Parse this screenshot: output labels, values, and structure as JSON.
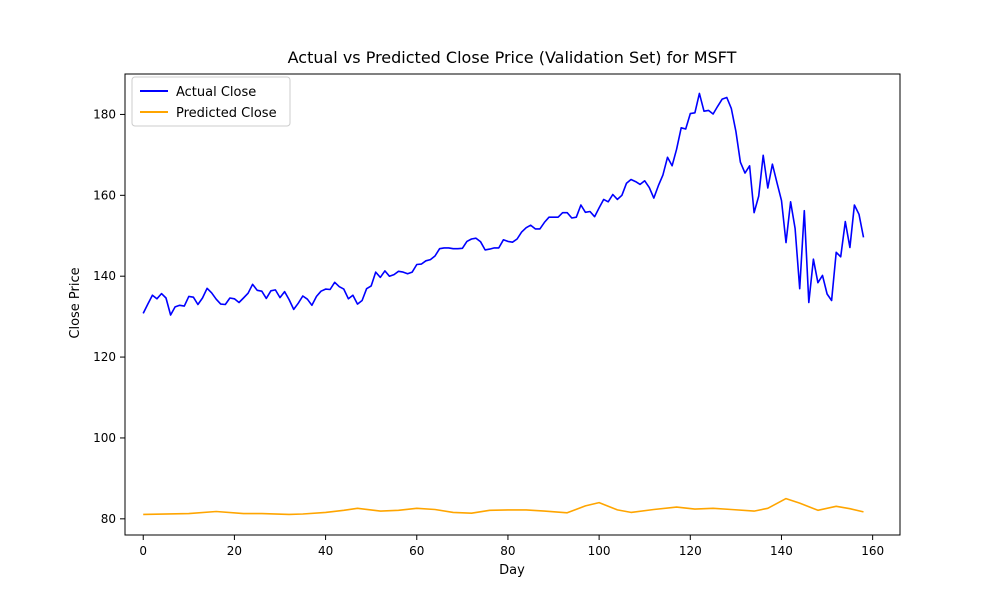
{
  "chart_data": {
    "type": "line",
    "title": "Actual vs Predicted Close Price (Validation Set) for MSFT",
    "xlabel": "Day",
    "ylabel": "Close Price",
    "xlim": [
      -4,
      166
    ],
    "ylim": [
      76,
      190
    ],
    "xticks": [
      0,
      20,
      40,
      60,
      80,
      100,
      120,
      140,
      160
    ],
    "yticks": [
      80,
      100,
      120,
      140,
      160,
      180
    ],
    "grid": false,
    "legend_position": "upper left",
    "series": [
      {
        "name": "Actual Close",
        "color": "#0000ff",
        "x": [
          0,
          1,
          2,
          3,
          4,
          5,
          6,
          7,
          8,
          9,
          10,
          11,
          12,
          13,
          14,
          15,
          16,
          17,
          18,
          19,
          20,
          21,
          22,
          23,
          24,
          25,
          26,
          27,
          28,
          29,
          30,
          31,
          32,
          33,
          34,
          35,
          36,
          37,
          38,
          39,
          40,
          41,
          42,
          43,
          44,
          45,
          46,
          47,
          48,
          49,
          50,
          51,
          52,
          53,
          54,
          55,
          56,
          57,
          58,
          59,
          60,
          61,
          62,
          63,
          64,
          65,
          66,
          67,
          68,
          69,
          70,
          71,
          72,
          73,
          74,
          75,
          76,
          77,
          78,
          79,
          80,
          81,
          82,
          83,
          84,
          85,
          86,
          87,
          88,
          89,
          90,
          91,
          92,
          93,
          94,
          95,
          96,
          97,
          98,
          99,
          100,
          101,
          102,
          103,
          104,
          105,
          106,
          107,
          108,
          109,
          110,
          111,
          112,
          113,
          114,
          115,
          116,
          117,
          118,
          119,
          120,
          121,
          122,
          123,
          124,
          125,
          126,
          127,
          128,
          129,
          130,
          131,
          132,
          133,
          134,
          135,
          136,
          137,
          138,
          139,
          140,
          141,
          142,
          143,
          144,
          145,
          146,
          147,
          148,
          149,
          150,
          151,
          152,
          153,
          154,
          155,
          156,
          157,
          158
        ],
        "values": [
          130.8,
          133.1,
          135.3,
          134.4,
          135.7,
          134.6,
          130.4,
          132.4,
          132.8,
          132.6,
          135.0,
          134.8,
          133.0,
          134.6,
          137.0,
          135.9,
          134.3,
          133.1,
          133.0,
          134.6,
          134.4,
          133.5,
          134.6,
          135.8,
          138.0,
          136.5,
          136.3,
          134.5,
          136.4,
          136.6,
          134.7,
          136.2,
          134.2,
          131.8,
          133.3,
          135.1,
          134.3,
          132.8,
          135.0,
          136.3,
          136.8,
          136.7,
          138.5,
          137.4,
          136.8,
          134.4,
          135.3,
          133.1,
          134.0,
          136.9,
          137.6,
          141.0,
          139.7,
          141.3,
          140.0,
          140.4,
          141.2,
          141.0,
          140.6,
          141.0,
          142.9,
          143.0,
          143.8,
          144.1,
          145.0,
          146.8,
          147.0,
          147.0,
          146.8,
          146.8,
          146.9,
          148.6,
          149.2,
          149.4,
          148.5,
          146.5,
          146.7,
          147.0,
          147.0,
          149.0,
          148.6,
          148.4,
          149.2,
          150.9,
          152.0,
          152.6,
          151.7,
          151.7,
          153.3,
          154.6,
          154.6,
          154.6,
          155.7,
          155.7,
          154.4,
          154.6,
          157.6,
          155.8,
          156.0,
          154.7,
          156.9,
          159.0,
          158.4,
          160.2,
          159.0,
          160.0,
          163.0,
          163.9,
          163.4,
          162.7,
          163.6,
          161.9,
          159.3,
          162.4,
          165.0,
          169.4,
          167.3,
          171.4,
          176.7,
          176.4,
          180.2,
          180.4,
          185.2,
          180.8,
          181.0,
          180.1,
          182.0,
          183.8,
          184.2,
          181.5,
          175.8,
          168.2,
          165.5,
          167.3,
          155.7,
          159.8,
          169.9,
          161.8,
          167.7,
          163.2,
          158.7,
          148.3,
          158.4,
          151.8,
          136.9,
          156.2,
          133.5,
          144.2,
          138.4,
          140.2,
          135.6,
          134.0,
          145.9,
          144.8,
          153.5,
          147.1,
          157.6,
          155.3,
          149.6
        ]
      },
      {
        "name": "Predicted Close",
        "color": "#ffa500",
        "x": [
          0,
          10,
          16,
          22,
          26,
          32,
          35,
          40,
          44,
          47,
          52,
          56,
          60,
          64,
          68,
          72,
          76,
          80,
          84,
          88,
          93,
          97,
          100,
          104,
          107,
          112,
          117,
          121,
          125,
          129,
          134,
          137,
          141,
          144,
          148,
          152,
          155,
          158
        ],
        "values": [
          81.1,
          81.3,
          81.8,
          81.3,
          81.3,
          81.1,
          81.2,
          81.6,
          82.1,
          82.6,
          81.9,
          82.1,
          82.6,
          82.3,
          81.6,
          81.4,
          82.1,
          82.2,
          82.2,
          81.9,
          81.5,
          83.2,
          84.0,
          82.2,
          81.6,
          82.3,
          82.9,
          82.4,
          82.6,
          82.3,
          81.9,
          82.6,
          85.0,
          83.9,
          82.1,
          83.1,
          82.5,
          81.7
        ]
      }
    ]
  }
}
